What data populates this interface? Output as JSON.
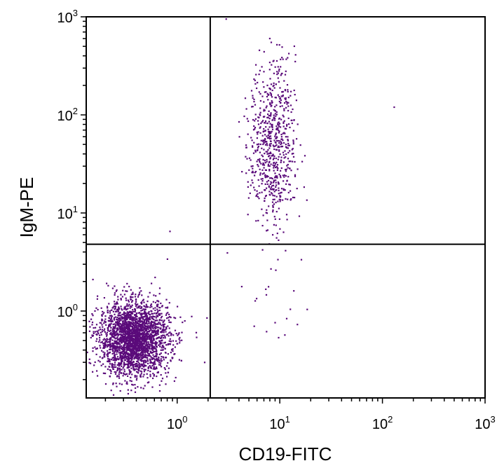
{
  "chart_data": {
    "type": "scatter",
    "title": "",
    "xlabel": "CD19-FITC",
    "ylabel": "IgM-PE",
    "x_scale": "log",
    "y_scale": "log",
    "xlim": [
      0.13,
      1000
    ],
    "ylim": [
      0.13,
      1000
    ],
    "x_ticks": [
      {
        "base": "10",
        "exp": "0",
        "value": 1
      },
      {
        "base": "10",
        "exp": "1",
        "value": 10
      },
      {
        "base": "10",
        "exp": "2",
        "value": 100
      },
      {
        "base": "10",
        "exp": "3",
        "value": 1000
      }
    ],
    "y_ticks": [
      {
        "base": "10",
        "exp": "0",
        "value": 1
      },
      {
        "base": "10",
        "exp": "1",
        "value": 10
      },
      {
        "base": "10",
        "exp": "2",
        "value": 100
      },
      {
        "base": "10",
        "exp": "3",
        "value": 1000
      }
    ],
    "quadrant_gate": {
      "x": 2.1,
      "y": 4.8
    },
    "point_color": "#5a0a7a",
    "grid": false,
    "legend": "none",
    "populations": [
      {
        "name": "",
        "n": 2600,
        "geo_mean_x": 0.38,
        "geo_mean_y": 0.52,
        "spread_x_decades": 0.17,
        "spread_y_decades": 0.19
      },
      {
        "name": "",
        "n": 700,
        "geo_mean_x": 8.5,
        "geo_mean_y": 50,
        "spread_x_decades": 0.11,
        "spread_y_decades": 0.42
      },
      {
        "name": "",
        "n": 22,
        "geo_mean_x": 9,
        "geo_mean_y": 1.3,
        "spread_x_decades": 0.18,
        "spread_y_decades": 0.3
      }
    ],
    "outliers": [
      {
        "x": 130,
        "y": 120
      },
      {
        "x": 0.85,
        "y": 6.5
      },
      {
        "x": 1.95,
        "y": 0.85
      },
      {
        "x": 1.85,
        "y": 0.3
      },
      {
        "x": 0.9,
        "y": 0.1
      },
      {
        "x": 4.0,
        "y": 85
      },
      {
        "x": 3.0,
        "y": 950
      }
    ]
  }
}
